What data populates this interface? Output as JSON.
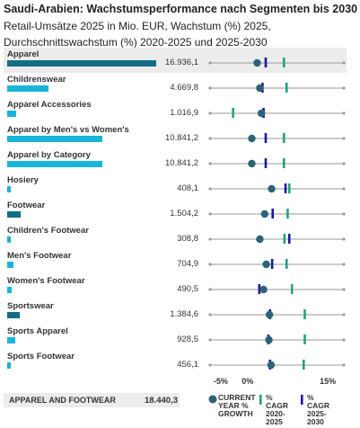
{
  "title": "Saudi-Arabien: Wachstumsperformance nach Segmenten bis 2030",
  "subtitle": "Retail-Umsätze 2025 in Mio. EUR, Wachstum (%) 2025, Durchschnittswachstum (%) 2020-2025 und 2025-2030",
  "colors": {
    "bar_primary": "#126f86",
    "bar_secondary": "#19b5d9",
    "current_marker": "#2c6378",
    "cagr_2020_2025": "#1fa37f",
    "cagr_2025_2030": "#1c17a3",
    "axis_line": "#9a9a9a",
    "highlight_bg": "#ececec"
  },
  "total": {
    "label": "APPAREL AND FOOTWEAR",
    "value": "18.440,3"
  },
  "axis_ticks": [
    {
      "value": -5,
      "label": "-5%"
    },
    {
      "value": 0,
      "label": "0%"
    },
    {
      "value": 15,
      "label": "15%"
    }
  ],
  "legend": {
    "current": [
      "CURRENT",
      "YEAR %",
      "GROWTH"
    ],
    "cagr_past": [
      "% CAGR",
      "2020-2025"
    ],
    "cagr_future": [
      "% CAGR",
      "2025-2030"
    ]
  },
  "chart_data": {
    "type": "bar",
    "title": "Saudi-Arabien: Wachstumsperformance nach Segmenten bis 2030",
    "growth_axis_range": [
      -7,
      18
    ],
    "categories": [
      "Apparel",
      "Childrenswear",
      "Apparel Accessories",
      "Apparel by Men's vs Women's",
      "Apparel by Category",
      "Hosiery",
      "Footwear",
      "Children's Footwear",
      "Men's Footwear",
      "Women's Footwear",
      "Sportswear",
      "Sports Apparel",
      "Sports Footwear"
    ],
    "rows": [
      {
        "category": "Apparel",
        "value": 16936.1,
        "display": "16.936,1",
        "level": 0,
        "current_growth": 1.8,
        "cagr_2020_2025": 6.8,
        "cagr_2025_2030": 3.4
      },
      {
        "category": "Childrenswear",
        "value": 4669.8,
        "display": "4.669,8",
        "level": 1,
        "current_growth": 2.3,
        "cagr_2020_2025": 7.3,
        "cagr_2025_2030": 2.8
      },
      {
        "category": "Apparel Accessories",
        "value": 1016.9,
        "display": "1.016,9",
        "level": 1,
        "current_growth": 2.6,
        "cagr_2020_2025": -2.7,
        "cagr_2025_2030": 3.0
      },
      {
        "category": "Apparel by Men's vs Women's",
        "value": 10841.2,
        "display": "10.841,2",
        "level": 1,
        "current_growth": 0.8,
        "cagr_2020_2025": 6.8,
        "cagr_2025_2030": 3.4
      },
      {
        "category": "Apparel by Category",
        "value": 10841.2,
        "display": "10.841,2",
        "level": 1,
        "current_growth": 0.8,
        "cagr_2020_2025": 6.8,
        "cagr_2025_2030": 3.4
      },
      {
        "category": "Hosiery",
        "value": 408.1,
        "display": "408,1",
        "level": 1,
        "current_growth": 4.5,
        "cagr_2020_2025": 7.8,
        "cagr_2025_2030": 7.1
      },
      {
        "category": "Footwear",
        "value": 1504.2,
        "display": "1.504,2",
        "level": 0,
        "current_growth": 3.2,
        "cagr_2020_2025": 7.5,
        "cagr_2025_2030": 4.7
      },
      {
        "category": "Children's Footwear",
        "value": 308.8,
        "display": "308,8",
        "level": 1,
        "current_growth": 2.3,
        "cagr_2020_2025": 6.9,
        "cagr_2025_2030": 7.8
      },
      {
        "category": "Men's Footwear",
        "value": 704.9,
        "display": "704,9",
        "level": 1,
        "current_growth": 3.5,
        "cagr_2020_2025": 7.3,
        "cagr_2025_2030": 4.6
      },
      {
        "category": "Women's Footwear",
        "value": 490.5,
        "display": "490,5",
        "level": 1,
        "current_growth": 3.0,
        "cagr_2020_2025": 8.3,
        "cagr_2025_2030": 2.2
      },
      {
        "category": "Sportswear",
        "value": 1384.6,
        "display": "1.384,6",
        "level": 0,
        "current_growth": 4.1,
        "cagr_2020_2025": 10.7,
        "cagr_2025_2030": 4.2
      },
      {
        "category": "Sports Apparel",
        "value": 928.5,
        "display": "928,5",
        "level": 1,
        "current_growth": 4.0,
        "cagr_2020_2025": 10.7,
        "cagr_2025_2030": 3.9
      },
      {
        "category": "Sports Footwear",
        "value": 456.1,
        "display": "456,1",
        "level": 1,
        "current_growth": 4.4,
        "cagr_2020_2025": 10.5,
        "cagr_2025_2030": 4.2
      }
    ]
  }
}
